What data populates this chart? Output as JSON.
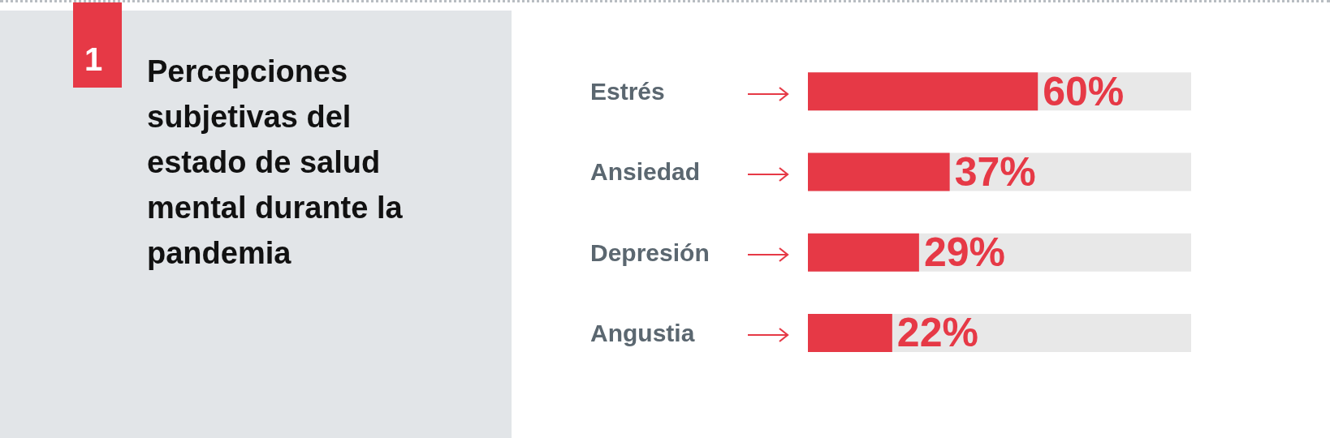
{
  "chart_data": {
    "type": "bar",
    "orientation": "horizontal",
    "title": "Percepciones subjetivas del estado de salud mental durante la pandemia",
    "categories": [
      "Estrés",
      "Ansiedad",
      "Depresión",
      "Angustia"
    ],
    "values": [
      60,
      37,
      29,
      22
    ],
    "value_labels": [
      "60%",
      "37%",
      "29%",
      "22%"
    ],
    "color": "#e63946",
    "xlim": [
      0,
      100
    ],
    "tick_labels": false,
    "annotations": [
      "1"
    ]
  }
}
